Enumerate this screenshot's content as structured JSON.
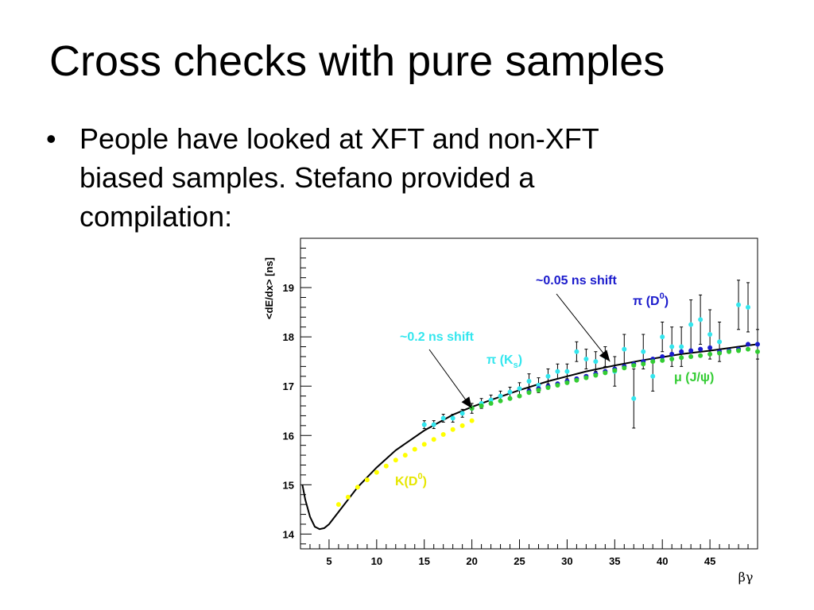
{
  "slide": {
    "title": "Cross checks with pure samples",
    "bullet": "People have looked at XFT and non-XFT\nbiased samples.  Stefano provided a\ncompilation:"
  },
  "chart_data": {
    "type": "scatter",
    "xlabel": "βγ",
    "ylabel": "<dE/dx> [ns]",
    "xlim": [
      2,
      50
    ],
    "ylim": [
      13.7,
      20.0
    ],
    "x_ticks": [
      5,
      10,
      15,
      20,
      25,
      30,
      35,
      40,
      45
    ],
    "y_ticks": [
      14,
      15,
      16,
      17,
      18,
      19
    ],
    "grid": false,
    "legend": "none",
    "curve": {
      "name": "",
      "color": "#000000",
      "x": [
        2.2,
        2.5,
        3,
        3.5,
        4,
        4.5,
        5,
        6,
        8,
        10,
        12,
        15,
        18,
        20,
        22,
        25,
        28,
        30,
        32,
        35,
        38,
        40,
        42,
        45,
        48,
        50
      ],
      "y": [
        15.0,
        14.7,
        14.35,
        14.15,
        14.1,
        14.12,
        14.2,
        14.45,
        14.95,
        15.35,
        15.7,
        16.1,
        16.42,
        16.58,
        16.72,
        16.92,
        17.1,
        17.2,
        17.3,
        17.42,
        17.53,
        17.59,
        17.65,
        17.72,
        17.8,
        17.85
      ]
    },
    "series": [
      {
        "name": "K(D0)",
        "color": "#ffff00",
        "x": [
          6,
          7,
          8,
          9,
          10,
          11,
          12,
          13,
          14,
          15,
          16,
          17,
          18,
          19,
          20
        ],
        "y": [
          14.6,
          14.75,
          14.95,
          15.1,
          15.25,
          15.38,
          15.5,
          15.6,
          15.72,
          15.82,
          15.92,
          16.02,
          16.12,
          16.2,
          16.3
        ]
      },
      {
        "name": "π (Ks)",
        "color": "#33e6ee",
        "x": [
          15,
          16,
          17,
          18,
          19,
          20,
          21,
          22,
          23,
          24,
          25,
          26,
          27,
          28,
          29,
          30,
          31,
          32,
          33,
          34,
          35,
          36,
          37,
          38,
          39,
          40,
          41,
          42,
          43,
          44,
          45,
          46,
          48,
          49,
          50
        ],
        "y": [
          16.22,
          16.22,
          16.35,
          16.35,
          16.45,
          16.55,
          16.65,
          16.72,
          16.8,
          16.88,
          16.95,
          17.1,
          17.02,
          17.2,
          17.3,
          17.3,
          17.7,
          17.55,
          17.5,
          17.6,
          17.3,
          17.75,
          16.75,
          17.7,
          17.2,
          18.0,
          17.8,
          17.8,
          18.25,
          18.35,
          18.05,
          17.9,
          18.65,
          18.6,
          17.85
        ],
        "error": [
          0.08,
          0.08,
          0.08,
          0.08,
          0.08,
          0.1,
          0.1,
          0.1,
          0.1,
          0.1,
          0.12,
          0.15,
          0.15,
          0.15,
          0.15,
          0.15,
          0.2,
          0.2,
          0.2,
          0.2,
          0.3,
          0.3,
          0.6,
          0.35,
          0.3,
          0.3,
          0.4,
          0.4,
          0.5,
          0.5,
          0.5,
          0.4,
          0.5,
          0.5,
          0.3
        ]
      },
      {
        "name": "π (D0)",
        "color": "#1a1acc",
        "x": [
          26,
          27,
          28,
          29,
          30,
          31,
          32,
          33,
          34,
          35,
          36,
          37,
          38,
          39,
          40,
          41,
          42,
          43,
          44,
          45,
          46,
          47,
          48,
          49,
          50
        ],
        "y": [
          16.9,
          16.95,
          17.0,
          17.05,
          17.1,
          17.15,
          17.2,
          17.25,
          17.3,
          17.35,
          17.4,
          17.45,
          17.5,
          17.55,
          17.6,
          17.65,
          17.7,
          17.72,
          17.75,
          17.78,
          17.7,
          17.72,
          17.75,
          17.85,
          17.85
        ]
      },
      {
        "name": "μ (J/ψ)",
        "color": "#33cc33",
        "x": [
          20,
          21,
          22,
          23,
          24,
          25,
          26,
          27,
          28,
          29,
          30,
          31,
          32,
          33,
          34,
          35,
          36,
          37,
          38,
          39,
          40,
          41,
          42,
          43,
          44,
          45,
          46,
          47,
          48,
          49,
          50
        ],
        "y": [
          16.55,
          16.6,
          16.65,
          16.7,
          16.75,
          16.8,
          16.87,
          16.92,
          16.97,
          17.02,
          17.07,
          17.12,
          17.17,
          17.22,
          17.27,
          17.32,
          17.37,
          17.42,
          17.45,
          17.5,
          17.52,
          17.55,
          17.58,
          17.6,
          17.62,
          17.65,
          17.67,
          17.7,
          17.72,
          17.75,
          17.7
        ]
      }
    ],
    "annotations": [
      {
        "text": "~0.05 ns shift",
        "color": "#1a1acc",
        "arrow_to": [
          34.5,
          17.5
        ]
      },
      {
        "text": "~0.2 ns shift",
        "color": "#33e6ee",
        "arrow_to": [
          20,
          16.55
        ]
      }
    ],
    "series_labels": [
      {
        "main": "π (D",
        "sup": "0",
        "end": ")",
        "color": "#1a1acc"
      },
      {
        "main": "π (K",
        "sub": "s",
        "end": ")",
        "color": "#33e6ee"
      },
      {
        "main": "μ (J/ψ)",
        "color": "#33cc33"
      },
      {
        "main": "K(D",
        "sup": "0",
        "end": ")",
        "color": "#e6e600"
      }
    ]
  }
}
